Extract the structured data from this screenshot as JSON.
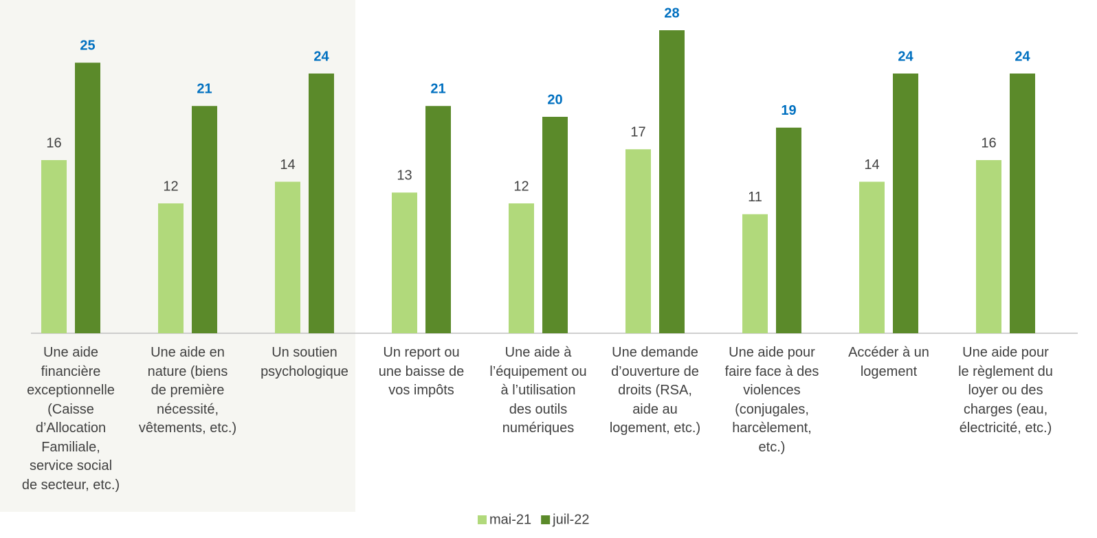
{
  "chart_data": {
    "type": "bar",
    "categories": [
      "Une aide\nfinancière\nexceptionnelle\n(Caisse\nd’Allocation\nFamiliale,\nservice social\nde secteur, etc.)",
      "Une aide en\nnature (biens\nde première\nnécessité,\nvêtements, etc.)",
      "Un soutien\npsychologique",
      "Un report ou\nune baisse de\nvos impôts",
      "Une aide à\nl’équipement ou\nà l’utilisation\ndes outils\nnumériques",
      "Une demande\nd’ouverture de\ndroits (RSA,\naide au\nlogement, etc.)",
      "Une aide pour\nfaire face à des\nviolences\n(conjugales,\nharcèlement,\netc.)",
      "Accéder à un\nlogement",
      "Une aide pour\nle règlement du\nloyer ou des\ncharges (eau,\nélectricité, etc.)"
    ],
    "series": [
      {
        "name": "mai-21",
        "color": "#b1d97b",
        "values": [
          16,
          12,
          14,
          13,
          12,
          17,
          11,
          14,
          16
        ]
      },
      {
        "name": "juil-22",
        "color": "#5b8a2a",
        "values": [
          25,
          21,
          24,
          21,
          20,
          28,
          19,
          24,
          24
        ]
      }
    ],
    "legend": "bottom"
  }
}
